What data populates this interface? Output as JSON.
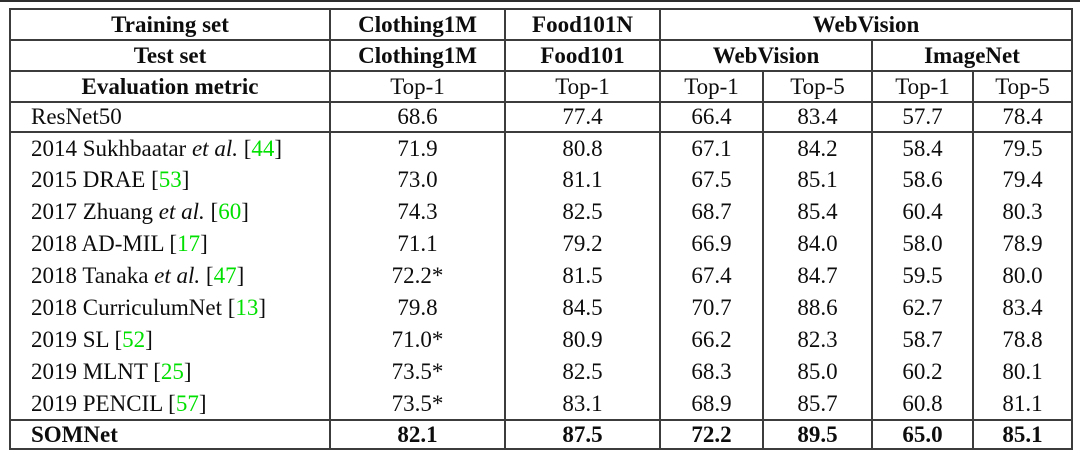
{
  "table": {
    "border_color": "#3c3c3c",
    "citation_color": "#00e000",
    "header": {
      "row1": {
        "label": "Training set",
        "cols": [
          "Clothing1M",
          "Food101N",
          "WebVision"
        ]
      },
      "row2": {
        "label": "Test set",
        "cols": [
          "Clothing1M",
          "Food101",
          "WebVision",
          "ImageNet"
        ]
      },
      "row3": {
        "label": "Evaluation metric",
        "cols": [
          "Top-1",
          "Top-1",
          "Top-1",
          "Top-5",
          "Top-1",
          "Top-5"
        ]
      }
    },
    "baseline_row": {
      "name": "ResNet50",
      "values": [
        "68.6",
        "77.4",
        "66.4",
        "83.4",
        "57.7",
        "78.4"
      ]
    },
    "method_rows": [
      {
        "name_prefix": "2014 Sukhbaatar",
        "etal": "et al.",
        "ref": "44",
        "values": [
          "71.9",
          "80.8",
          "67.1",
          "84.2",
          "58.4",
          "79.5"
        ]
      },
      {
        "name_prefix": "2015 DRAE",
        "etal": "",
        "ref": "53",
        "values": [
          "73.0",
          "81.1",
          "67.5",
          "85.1",
          "58.6",
          "79.4"
        ]
      },
      {
        "name_prefix": "2017 Zhuang",
        "etal": "et al.",
        "ref": "60",
        "values": [
          "74.3",
          "82.5",
          "68.7",
          "85.4",
          "60.4",
          "80.3"
        ]
      },
      {
        "name_prefix": "2018 AD-MIL",
        "etal": "",
        "ref": "17",
        "values": [
          "71.1",
          "79.2",
          "66.9",
          "84.0",
          "58.0",
          "78.9"
        ]
      },
      {
        "name_prefix": "2018 Tanaka",
        "etal": "et al.",
        "ref": "47",
        "values": [
          "72.2*",
          "81.5",
          "67.4",
          "84.7",
          "59.5",
          "80.0"
        ]
      },
      {
        "name_prefix": "2018 CurriculumNet",
        "etal": "",
        "ref": "13",
        "values": [
          "79.8",
          "84.5",
          "70.7",
          "88.6",
          "62.7",
          "83.4"
        ]
      },
      {
        "name_prefix": "2019 SL",
        "etal": "",
        "ref": "52",
        "values": [
          "71.0*",
          "80.9",
          "66.2",
          "82.3",
          "58.7",
          "78.8"
        ]
      },
      {
        "name_prefix": "2019 MLNT",
        "etal": "",
        "ref": "25",
        "values": [
          "73.5*",
          "82.5",
          "68.3",
          "85.0",
          "60.2",
          "80.1"
        ]
      },
      {
        "name_prefix": "2019 PENCIL",
        "etal": "",
        "ref": "57",
        "values": [
          "73.5*",
          "83.1",
          "68.9",
          "85.7",
          "60.8",
          "81.1"
        ]
      }
    ],
    "final_row": {
      "name": "SOMNet",
      "values": [
        "82.1",
        "87.5",
        "72.2",
        "89.5",
        "65.0",
        "85.1"
      ]
    }
  }
}
